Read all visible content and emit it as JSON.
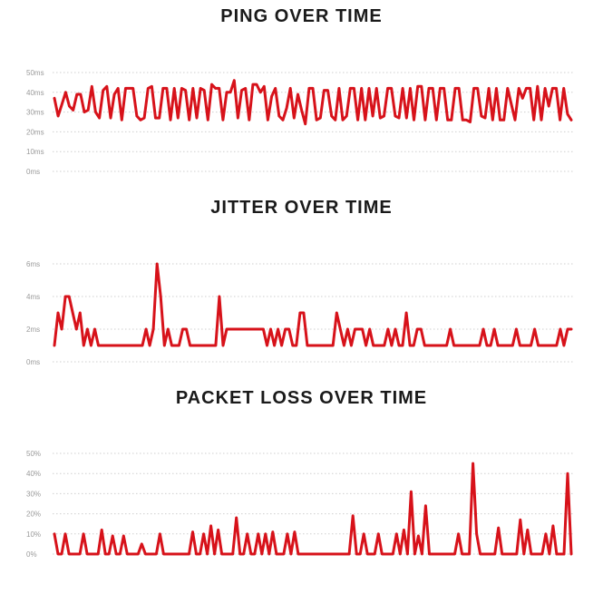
{
  "chart_data": [
    {
      "type": "line",
      "title": "PING OVER TIME",
      "ylim": [
        0,
        50
      ],
      "yticks": [
        0,
        10,
        20,
        30,
        40,
        50
      ],
      "ytick_labels": [
        "0ms",
        "10ms",
        "20ms",
        "30ms",
        "40ms",
        "50ms"
      ],
      "grid": true,
      "color": "#d7121a",
      "series": [
        {
          "values": [
            37,
            28,
            34,
            40,
            33,
            31,
            39,
            39,
            30,
            31,
            43,
            30,
            27,
            41,
            43,
            27,
            39,
            42,
            26,
            42,
            42,
            42,
            28,
            26,
            27,
            42,
            43,
            27,
            27,
            42,
            42,
            26,
            42,
            27,
            42,
            41,
            26,
            42,
            27,
            42,
            41,
            26,
            44,
            42,
            42,
            26,
            40,
            40,
            46,
            27,
            41,
            42,
            26,
            44,
            44,
            40,
            43,
            26,
            38,
            42,
            28,
            26,
            32,
            42,
            27,
            39,
            31,
            24,
            42,
            42,
            26,
            27,
            41,
            41,
            28,
            26,
            42,
            26,
            28,
            42,
            42,
            26,
            42,
            26,
            42,
            28,
            42,
            27,
            28,
            42,
            42,
            28,
            27,
            42,
            27,
            42,
            26,
            43,
            43,
            26,
            42,
            42,
            26,
            42,
            42,
            26,
            26,
            42,
            42,
            26,
            26,
            25,
            42,
            42,
            28,
            27,
            42,
            26,
            42,
            26,
            26,
            42,
            34,
            26,
            42,
            37,
            42,
            42,
            26,
            43,
            26,
            42,
            33,
            42,
            42,
            26,
            42,
            29,
            26
          ]
        }
      ]
    },
    {
      "type": "line",
      "title": "JITTER OVER TIME",
      "ylim": [
        0,
        6
      ],
      "yticks": [
        0,
        2,
        4,
        6
      ],
      "ytick_labels": [
        "0ms",
        "2ms",
        "4ms",
        "6ms"
      ],
      "grid": true,
      "color": "#d7121a",
      "series": [
        {
          "values": [
            1,
            3,
            2,
            4,
            4,
            3,
            2,
            3,
            1,
            2,
            1,
            2,
            1,
            1,
            1,
            1,
            1,
            1,
            1,
            1,
            1,
            1,
            1,
            1,
            1,
            2,
            1,
            2,
            6,
            4,
            1,
            2,
            1,
            1,
            1,
            2,
            2,
            1,
            1,
            1,
            1,
            1,
            1,
            1,
            1,
            4,
            1,
            2,
            2,
            2,
            2,
            2,
            2,
            2,
            2,
            2,
            2,
            2,
            1,
            2,
            1,
            2,
            1,
            2,
            2,
            1,
            1,
            3,
            3,
            1,
            1,
            1,
            1,
            1,
            1,
            1,
            1,
            3,
            2,
            1,
            2,
            1,
            2,
            2,
            2,
            1,
            2,
            1,
            1,
            1,
            1,
            2,
            1,
            2,
            1,
            1,
            3,
            1,
            1,
            2,
            2,
            1,
            1,
            1,
            1,
            1,
            1,
            1,
            2,
            1,
            1,
            1,
            1,
            1,
            1,
            1,
            1,
            2,
            1,
            1,
            2,
            1,
            1,
            1,
            1,
            1,
            2,
            1,
            1,
            1,
            1,
            2,
            1,
            1,
            1,
            1,
            1,
            1,
            2,
            1,
            2,
            2
          ]
        }
      ]
    },
    {
      "type": "line",
      "title": "PACKET LOSS OVER TIME",
      "ylim": [
        0,
        50
      ],
      "yticks": [
        0,
        10,
        20,
        30,
        40,
        50
      ],
      "ytick_labels": [
        "0%",
        "10%",
        "20%",
        "30%",
        "40%",
        "50%"
      ],
      "grid": true,
      "color": "#d7121a",
      "series": [
        {
          "values": [
            10,
            0,
            0,
            10,
            0,
            0,
            0,
            0,
            10,
            0,
            0,
            0,
            0,
            12,
            0,
            0,
            9,
            0,
            0,
            9,
            0,
            0,
            0,
            0,
            5,
            0,
            0,
            0,
            0,
            10,
            0,
            0,
            0,
            0,
            0,
            0,
            0,
            0,
            11,
            0,
            0,
            10,
            0,
            14,
            0,
            12,
            0,
            0,
            0,
            0,
            18,
            0,
            0,
            10,
            0,
            0,
            10,
            0,
            10,
            0,
            11,
            0,
            0,
            0,
            10,
            0,
            11,
            0,
            0,
            0,
            0,
            0,
            0,
            0,
            0,
            0,
            0,
            0,
            0,
            0,
            0,
            0,
            19,
            0,
            0,
            10,
            0,
            0,
            0,
            10,
            0,
            0,
            0,
            0,
            10,
            0,
            12,
            0,
            31,
            0,
            9,
            0,
            24,
            0,
            0,
            0,
            0,
            0,
            0,
            0,
            0,
            10,
            0,
            0,
            0,
            45,
            10,
            0,
            0,
            0,
            0,
            0,
            13,
            0,
            0,
            0,
            0,
            0,
            17,
            0,
            12,
            0,
            0,
            0,
            0,
            10,
            0,
            14,
            0,
            0,
            0,
            40,
            0
          ]
        }
      ]
    }
  ]
}
